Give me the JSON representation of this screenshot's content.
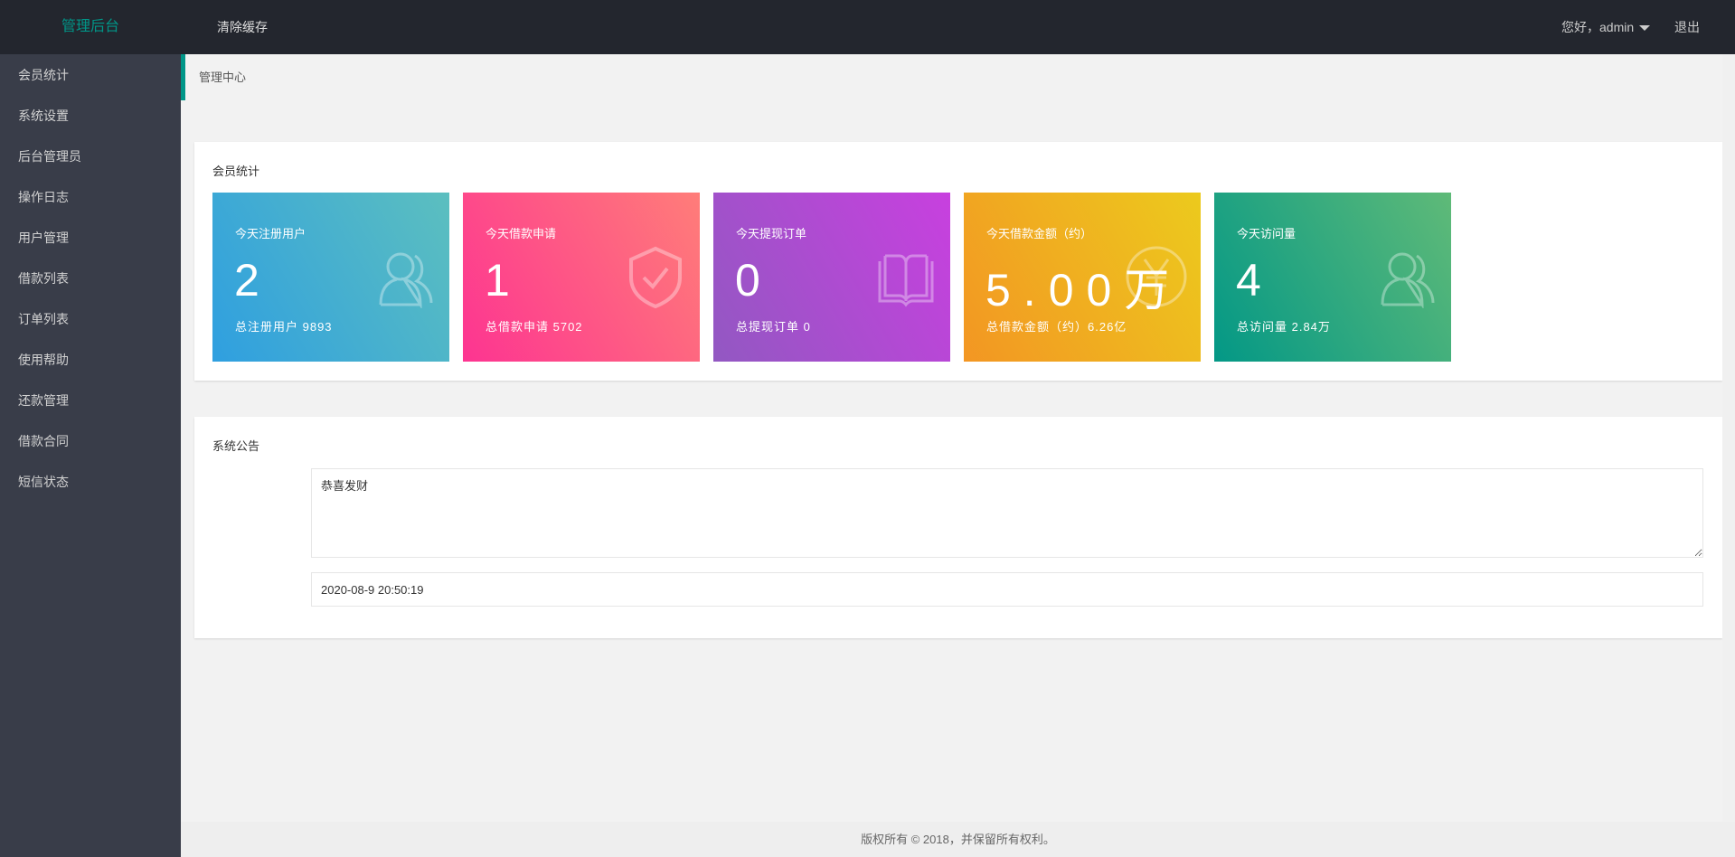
{
  "header": {
    "logo": "管理后台",
    "clear_cache": "清除缓存",
    "greeting": "您好，admin",
    "logout": "退出"
  },
  "sidebar": {
    "items": [
      {
        "label": "会员统计"
      },
      {
        "label": "系统设置"
      },
      {
        "label": "后台管理员"
      },
      {
        "label": "操作日志"
      },
      {
        "label": "用户管理"
      },
      {
        "label": "借款列表"
      },
      {
        "label": "订单列表"
      },
      {
        "label": "使用帮助"
      },
      {
        "label": "还款管理"
      },
      {
        "label": "借款合同"
      },
      {
        "label": "短信状态"
      }
    ]
  },
  "breadcrumb": "管理中心",
  "stats": {
    "title": "会员统计",
    "cards": [
      {
        "title": "今天注册用户",
        "value": "2",
        "sub": "总注册用户 9893",
        "icon": "users-icon",
        "colors": [
          "#2f9fe0",
          "#5cbfbf"
        ]
      },
      {
        "title": "今天借款申请",
        "value": "1",
        "sub": "总借款申请 5702",
        "icon": "shield-check-icon",
        "colors": [
          "#fd3491",
          "#ff7d79"
        ]
      },
      {
        "title": "今天提现订单",
        "value": "0",
        "sub": "总提现订单 0",
        "icon": "book-icon",
        "colors": [
          "#9258c2",
          "#c840df"
        ]
      },
      {
        "title": "今天借款金额（约）",
        "value": "5.00万",
        "sub": "总借款金额（约）6.26亿",
        "icon": "yen-icon",
        "colors": [
          "#f39623",
          "#ecca1d"
        ]
      },
      {
        "title": "今天访问量",
        "value": "4",
        "sub": "总访问量 2.84万",
        "icon": "users-icon",
        "colors": [
          "#039886",
          "#5fba78"
        ]
      }
    ]
  },
  "notice": {
    "title": "系统公告",
    "content": "恭喜发财",
    "time": "2020-08-9 20:50:19"
  },
  "footer": "版权所有 © 2018，并保留所有权利。",
  "accent": "#009688"
}
